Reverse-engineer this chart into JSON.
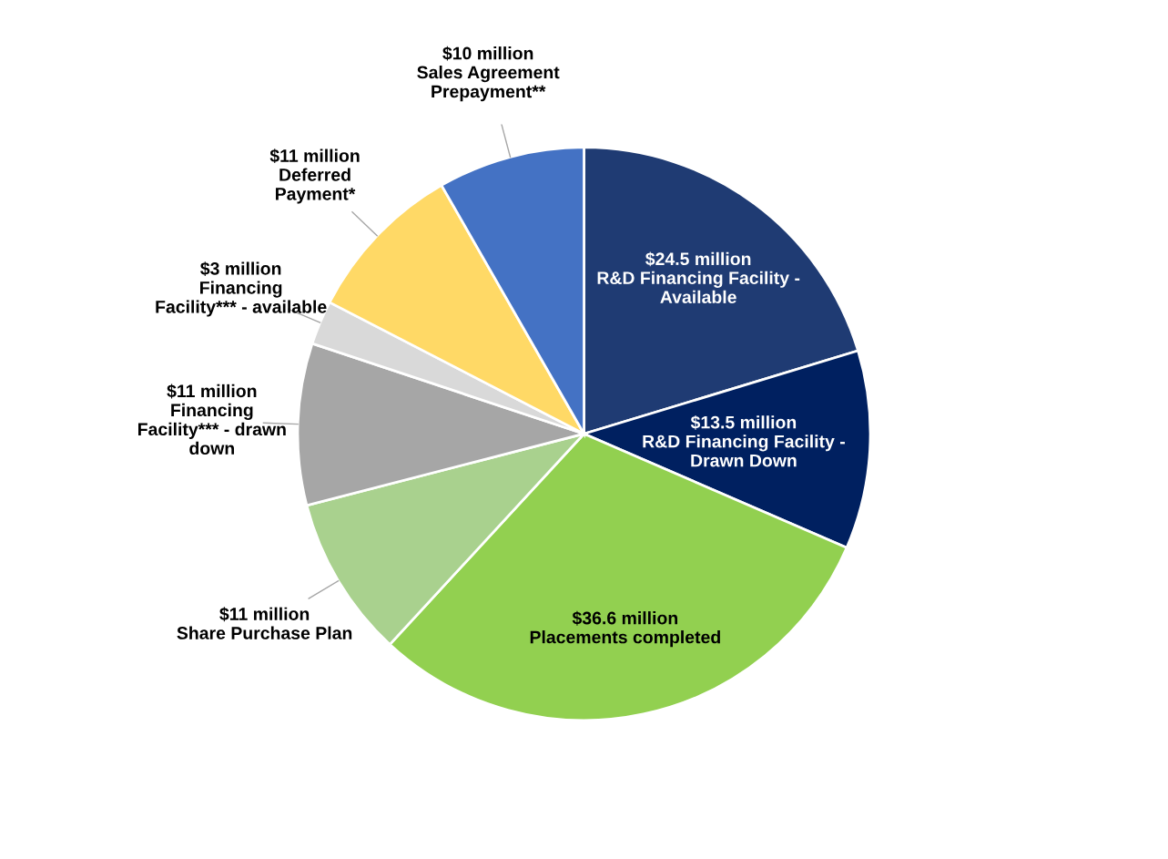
{
  "chart_data": {
    "type": "pie",
    "categories": [
      "R&D Financing Facility -\nAvailable",
      "R&D Financing Facility -\nDrawn Down",
      "Placements completed",
      "Share Purchase Plan",
      "Financing\nFacility*** - drawn\ndown",
      "Financing\nFacility*** - available",
      "Deferred\nPayment*",
      "Sales Agreement\nPrepayment**"
    ],
    "values": [
      24.5,
      13.5,
      36.6,
      11,
      11,
      3,
      11,
      10
    ],
    "value_labels": [
      "$24.5 million",
      "$13.5 million",
      "$36.6 million",
      "$11 million",
      "$11 million",
      "$3 million",
      "$11 million",
      "$10 million"
    ],
    "colors": [
      "#1f3b73",
      "#002060",
      "#92d050",
      "#a9d18e",
      "#a6a6a6",
      "#d9d9d9",
      "#ffd966",
      "#4472c4"
    ]
  }
}
